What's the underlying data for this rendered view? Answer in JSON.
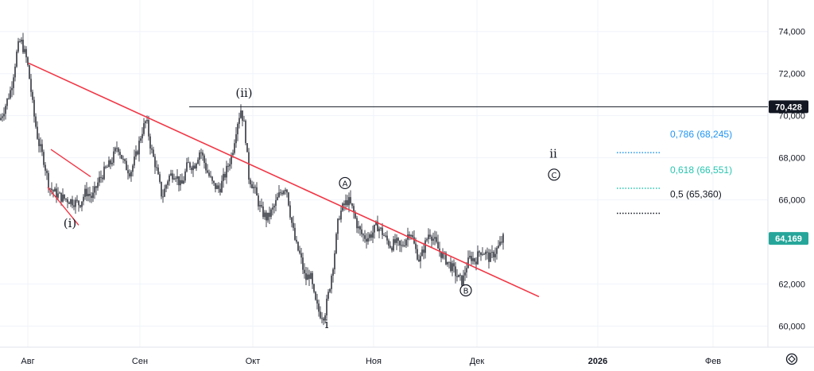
{
  "chart_data": {
    "type": "candlestick",
    "x_labels": [
      "Авг",
      "Сен",
      "Окт",
      "Ноя",
      "Дек",
      "2026",
      "Фев"
    ],
    "y_ticks": [
      "74,000",
      "72,000",
      "70,000",
      "68,000",
      "66,000",
      "62,000",
      "60,000"
    ],
    "ylim": [
      59000,
      75500
    ],
    "grid": true,
    "series": [
      {
        "values": [
          [
            0,
            69800
          ],
          [
            6,
            70400
          ],
          [
            14,
            71300
          ],
          [
            22,
            73200
          ],
          [
            26,
            73600
          ],
          [
            30,
            73100
          ],
          [
            34,
            72600
          ],
          [
            38,
            71500
          ],
          [
            42,
            70200
          ],
          [
            48,
            68800
          ],
          [
            55,
            67900
          ],
          [
            62,
            66600
          ],
          [
            70,
            66300
          ],
          [
            78,
            66100
          ],
          [
            86,
            66000
          ],
          [
            94,
            65900
          ],
          [
            100,
            65800
          ],
          [
            108,
            66400
          ],
          [
            116,
            66100
          ],
          [
            124,
            66900
          ],
          [
            132,
            67400
          ],
          [
            140,
            67800
          ],
          [
            148,
            68600
          ],
          [
            156,
            67700
          ],
          [
            164,
            67300
          ],
          [
            172,
            68200
          ],
          [
            178,
            69200
          ],
          [
            184,
            69800
          ],
          [
            190,
            68400
          ],
          [
            196,
            67600
          ],
          [
            204,
            66100
          ],
          [
            212,
            67100
          ],
          [
            220,
            67300
          ],
          [
            228,
            66600
          ],
          [
            236,
            67700
          ],
          [
            244,
            67600
          ],
          [
            252,
            68400
          ],
          [
            260,
            67400
          ],
          [
            268,
            66700
          ],
          [
            276,
            66500
          ],
          [
            284,
            67300
          ],
          [
            292,
            68200
          ],
          [
            298,
            69600
          ],
          [
            303,
            70300
          ],
          [
            308,
            69400
          ],
          [
            313,
            67100
          ],
          [
            320,
            66500
          ],
          [
            328,
            65500
          ],
          [
            336,
            65100
          ],
          [
            344,
            65600
          ],
          [
            352,
            66300
          ],
          [
            360,
            66700
          ],
          [
            366,
            65100
          ],
          [
            372,
            63900
          ],
          [
            378,
            63300
          ],
          [
            384,
            62200
          ],
          [
            390,
            62500
          ],
          [
            396,
            61200
          ],
          [
            402,
            60600
          ],
          [
            408,
            60500
          ],
          [
            414,
            61700
          ],
          [
            420,
            63200
          ],
          [
            426,
            65200
          ],
          [
            432,
            65700
          ],
          [
            438,
            66000
          ],
          [
            444,
            65500
          ],
          [
            450,
            64700
          ],
          [
            456,
            64300
          ],
          [
            462,
            64200
          ],
          [
            468,
            64400
          ],
          [
            474,
            64800
          ],
          [
            480,
            64500
          ],
          [
            486,
            64100
          ],
          [
            492,
            63800
          ],
          [
            498,
            64000
          ],
          [
            504,
            63700
          ],
          [
            510,
            64100
          ],
          [
            516,
            64600
          ],
          [
            522,
            63700
          ],
          [
            528,
            63100
          ],
          [
            534,
            63800
          ],
          [
            540,
            64500
          ],
          [
            546,
            64100
          ],
          [
            552,
            63600
          ],
          [
            558,
            63300
          ],
          [
            564,
            63000
          ],
          [
            570,
            62700
          ],
          [
            576,
            62300
          ],
          [
            582,
            62100
          ],
          [
            586,
            62800
          ],
          [
            592,
            63300
          ],
          [
            598,
            63100
          ],
          [
            604,
            63600
          ],
          [
            610,
            63500
          ],
          [
            616,
            63200
          ],
          [
            622,
            63500
          ],
          [
            628,
            63800
          ],
          [
            633,
            64169
          ]
        ]
      }
    ],
    "current_price": "64,169",
    "level": {
      "label": "70,428",
      "value": 70428
    },
    "trendline": {
      "x1": 36,
      "x2": 678,
      "y1": 72500,
      "y2": 61400
    },
    "fib_levels": [
      {
        "label": "0,786 (68,245)",
        "value": 68245,
        "color": "#2196f3"
      },
      {
        "label": "0,618 (66,551)",
        "value": 66551,
        "color": "#26c6b0"
      },
      {
        "label": "0,5 (65,360)",
        "value": 65360,
        "color": "#131722"
      }
    ],
    "wave_labels": [
      {
        "text": "(ii)",
        "price": 70900
      },
      {
        "text": "(i)",
        "price": 64700
      },
      {
        "text": "i",
        "price": 59900
      },
      {
        "text": "ii",
        "price": 68000
      }
    ],
    "circled_labels": [
      {
        "text": "A",
        "price": 66800
      },
      {
        "text": "B",
        "price": 61700
      },
      {
        "text": "C",
        "price": 67200
      }
    ]
  },
  "colors": {
    "trendline": "#f23645",
    "candle": "#131722",
    "axis_tag_bg": "#131722",
    "current_tag_bg": "#26a69a",
    "grid": "#f0f3fa"
  },
  "icons": {
    "settings": "clock-settings-icon"
  }
}
